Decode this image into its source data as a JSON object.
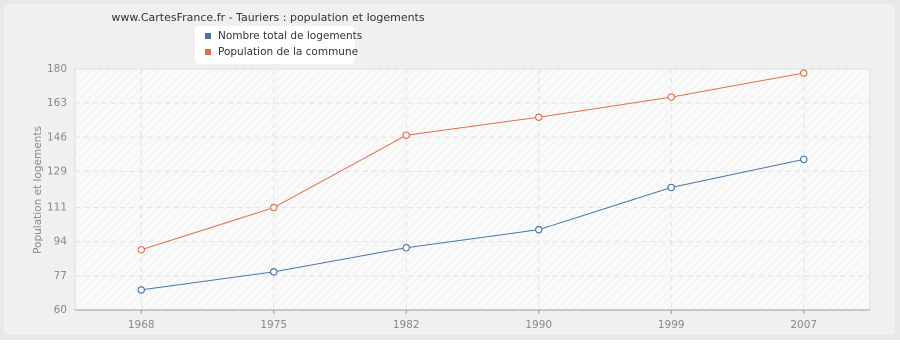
{
  "chart_data": {
    "type": "line",
    "title": "www.CartesFrance.fr - Tauriers : population et logements",
    "y_label": "Population et logements",
    "categories": [
      "1968",
      "1975",
      "1982",
      "1990",
      "1999",
      "2007"
    ],
    "series": [
      {
        "name": "Nombre total de logements",
        "color": "#4a76a8",
        "values": [
          70,
          79,
          91,
          100,
          121,
          135
        ]
      },
      {
        "name": "Population de la commune",
        "color": "#e07048",
        "values": [
          90,
          111,
          147,
          156,
          166,
          178
        ]
      }
    ],
    "ylim": [
      60,
      180
    ],
    "yticks": [
      60,
      77,
      94,
      111,
      129,
      146,
      163,
      180
    ],
    "grid": true
  }
}
